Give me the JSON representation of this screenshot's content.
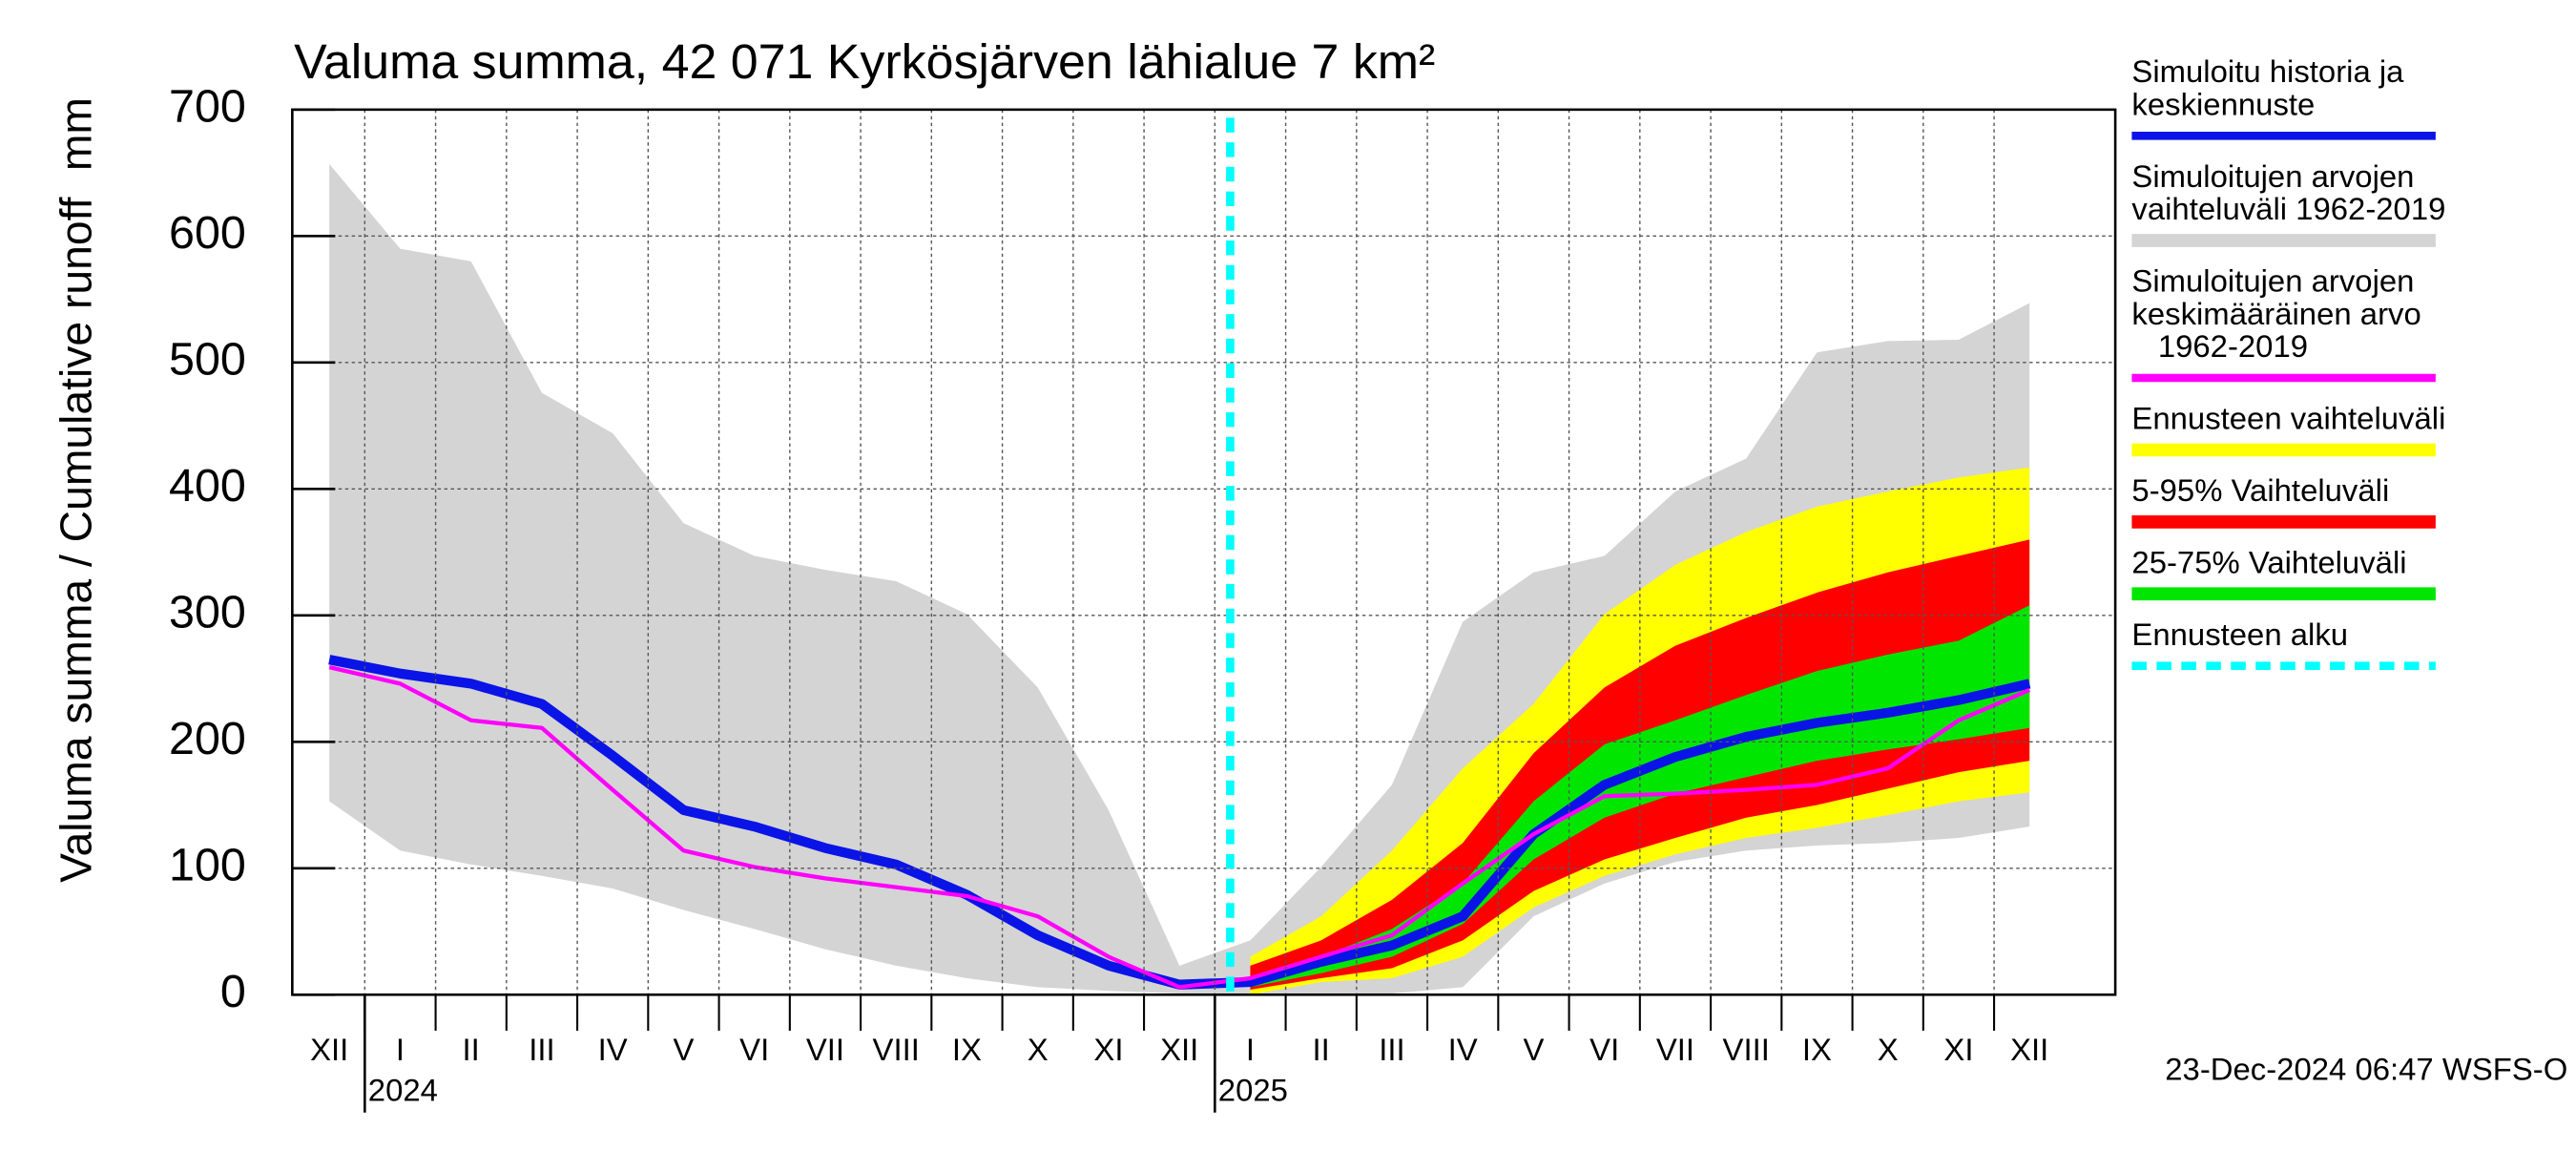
{
  "chart_data": {
    "type": "band-line",
    "title": "Valuma summa, 42 071 Kyrkösjärven lähialue 7 km²",
    "ylabel": "Valuma summa / Cumulative runoff",
    "yunit": "mm",
    "timestamp": "23-Dec-2024 06:47 WSFS-O",
    "categories": [
      "XII",
      "I",
      "II",
      "III",
      "IV",
      "V",
      "VI",
      "VII",
      "VIII",
      "IX",
      "X",
      "XI",
      "XII",
      "I",
      "II",
      "III",
      "IV",
      "V",
      "VI",
      "VII",
      "VIII",
      "IX",
      "X",
      "XI",
      "XII"
    ],
    "years": [
      {
        "index": 1,
        "label": "2024"
      },
      {
        "index": 13,
        "label": "2025"
      }
    ],
    "ylim": [
      0,
      700
    ],
    "yticks": [
      0,
      100,
      200,
      300,
      400,
      500,
      600,
      700
    ],
    "grid": true,
    "series": [
      {
        "name": "Simuloitu historia ja\nkeskiennuste",
        "kind": "line",
        "color": "#0a14e6",
        "values": [
          265,
          254,
          246,
          230,
          189,
          146,
          133,
          116,
          103,
          79,
          47,
          23,
          8,
          10,
          26,
          39,
          62,
          127,
          166,
          188,
          204,
          215,
          223,
          233,
          246
        ]
      },
      {
        "name": "Simuloitujen arvojen\nvaihteluväli 1962-2019",
        "kind": "band",
        "color": "#d4d4d4",
        "upper": [
          657,
          590,
          580,
          476,
          444,
          373,
          347,
          336,
          327,
          301,
          243,
          146,
          23,
          43,
          101,
          166,
          295,
          334,
          347,
          398,
          424,
          508,
          517,
          518,
          547
        ],
        "lower": [
          153,
          114,
          103,
          94,
          84,
          67,
          52,
          36,
          23,
          13,
          6,
          3,
          1,
          1,
          1,
          1,
          6,
          62,
          88,
          105,
          114,
          118,
          120,
          124,
          133
        ]
      },
      {
        "name": "Simuloitujen arvojen\nkeskimääräinen arvo\n   1962-2019",
        "kind": "line",
        "color": "#ff00ff",
        "values": [
          259,
          246,
          217,
          211,
          162,
          114,
          101,
          92,
          85,
          78,
          62,
          30,
          6,
          13,
          30,
          47,
          88,
          127,
          157,
          159,
          162,
          166,
          179,
          217,
          241
        ]
      },
      {
        "name": "Ennusteen vaihteluväli",
        "kind": "band",
        "color": "#ffff00",
        "upper": [
          null,
          null,
          null,
          null,
          null,
          null,
          null,
          null,
          null,
          null,
          null,
          null,
          null,
          30,
          62,
          114,
          179,
          230,
          301,
          340,
          366,
          386,
          398,
          409,
          417
        ],
        "lower": [
          null,
          null,
          null,
          null,
          null,
          null,
          null,
          null,
          null,
          null,
          null,
          null,
          null,
          0,
          10,
          13,
          30,
          69,
          94,
          111,
          124,
          132,
          142,
          153,
          160
        ]
      },
      {
        "name": "5-95% Vaihteluväli",
        "kind": "band",
        "color": "#ff0000",
        "upper": [
          null,
          null,
          null,
          null,
          null,
          null,
          null,
          null,
          null,
          null,
          null,
          null,
          null,
          23,
          43,
          75,
          120,
          191,
          243,
          276,
          298,
          318,
          334,
          347,
          360
        ],
        "lower": [
          null,
          null,
          null,
          null,
          null,
          null,
          null,
          null,
          null,
          null,
          null,
          null,
          null,
          4,
          13,
          21,
          43,
          82,
          107,
          124,
          140,
          150,
          163,
          176,
          185
        ]
      },
      {
        "name": "25-75% Vaihteluväli",
        "kind": "band",
        "color": "#00e600",
        "upper": [
          null,
          null,
          null,
          null,
          null,
          null,
          null,
          null,
          null,
          null,
          null,
          null,
          null,
          14,
          30,
          52,
          88,
          153,
          198,
          217,
          237,
          256,
          269,
          280,
          308
        ],
        "lower": [
          null,
          null,
          null,
          null,
          null,
          null,
          null,
          null,
          null,
          null,
          null,
          null,
          null,
          6,
          17,
          30,
          56,
          107,
          140,
          159,
          172,
          185,
          194,
          202,
          211
        ]
      },
      {
        "name": "Ennusteen alku",
        "kind": "vline",
        "color": "#00ffff"
      }
    ]
  }
}
